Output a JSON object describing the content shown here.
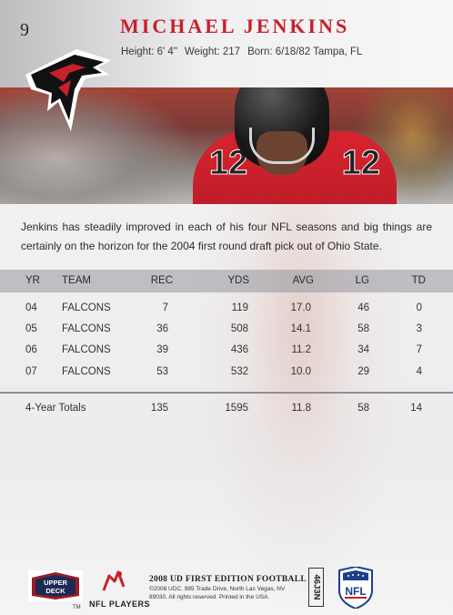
{
  "card": {
    "number": "9",
    "player_name": "MICHAEL JENKINS",
    "bio": {
      "height": "Height: 6' 4\"",
      "weight": "Weight: 217",
      "born": "Born: 6/18/82 Tampa, FL"
    },
    "jersey_number": "12",
    "description": "Jenkins has steadily improved in each of his four NFL seasons and big things are certainly on the horizon for the 2004 first round draft pick out of Ohio State."
  },
  "stats": {
    "headers": [
      "YR",
      "TEAM",
      "REC",
      "YDS",
      "AVG",
      "LG",
      "TD"
    ],
    "rows": [
      {
        "yr": "04",
        "team": "FALCONS",
        "rec": "7",
        "yds": "119",
        "avg": "17.0",
        "lg": "46",
        "td": "0"
      },
      {
        "yr": "05",
        "team": "FALCONS",
        "rec": "36",
        "yds": "508",
        "avg": "14.1",
        "lg": "58",
        "td": "3"
      },
      {
        "yr": "06",
        "team": "FALCONS",
        "rec": "39",
        "yds": "436",
        "avg": "11.2",
        "lg": "34",
        "td": "7"
      },
      {
        "yr": "07",
        "team": "FALCONS",
        "rec": "53",
        "yds": "532",
        "avg": "10.0",
        "lg": "29",
        "td": "4"
      }
    ],
    "totals": {
      "label": "4-Year Totals",
      "rec": "135",
      "yds": "1595",
      "avg": "11.8",
      "lg": "58",
      "td": "14"
    }
  },
  "footer": {
    "upper_deck_logo_text": "UPPER DECK",
    "trademark": "TM",
    "nfl_players_label": "NFL PLAYERS",
    "set_name": "2008 UD FIRST EDITION FOOTBALL",
    "legal": "©2008 UDC. 985 Trade Drive, North Las Vegas, NV 89030. All rights reserved. Printed in the USA.",
    "code": "46J3N",
    "nfl_shield_text": "NFL"
  },
  "colors": {
    "accent_red": "#c8202b",
    "falcons_black": "#111111",
    "nfl_blue": "#1b3f8b"
  },
  "icons": {
    "team_logo": "falcons-logo-icon",
    "brand_logo": "upper-deck-logo-icon",
    "players_logo": "nfl-players-icon",
    "league_logo": "nfl-shield-icon"
  }
}
